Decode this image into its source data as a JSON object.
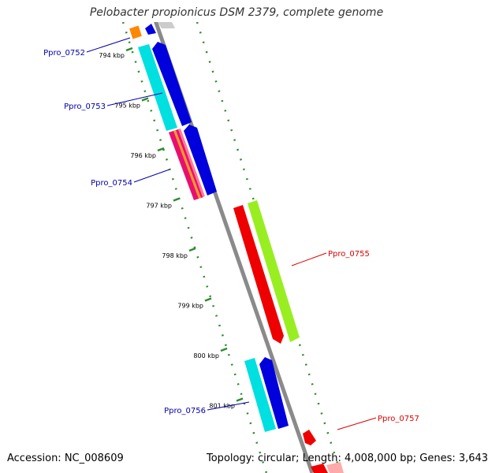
{
  "header": {
    "title": "Pelobacter propionicus DSM 2379, complete genome"
  },
  "footer": {
    "accession": "Accession: NC_008609",
    "summary": "Topology: circular; Length: 4,008,000 bp; Genes: 3,643"
  },
  "colors": {
    "backbone": "#8a8a8a",
    "ruler": "#2e8b2e",
    "forward_label": "#0000aa",
    "reverse_label": "#dd0000"
  },
  "ruler_ticks": [
    {
      "kbp": 794,
      "label": "794 kbp"
    },
    {
      "kbp": 795,
      "label": "795 kbp"
    },
    {
      "kbp": 796,
      "label": "796 kbp"
    },
    {
      "kbp": 797,
      "label": "797 kbp"
    },
    {
      "kbp": 798,
      "label": "798 kbp"
    },
    {
      "kbp": 799,
      "label": "799 kbp"
    },
    {
      "kbp": 800,
      "label": "800 kbp"
    },
    {
      "kbp": 801,
      "label": "801 kbp"
    }
  ],
  "gene_labels": [
    {
      "name": "Ppro_0752",
      "strand": "forward"
    },
    {
      "name": "Ppro_0753",
      "strand": "forward"
    },
    {
      "name": "Ppro_0754",
      "strand": "forward"
    },
    {
      "name": "Ppro_0755",
      "strand": "reverse"
    },
    {
      "name": "Ppro_0756",
      "strand": "forward"
    },
    {
      "name": "Ppro_0757",
      "strand": "reverse"
    }
  ]
}
